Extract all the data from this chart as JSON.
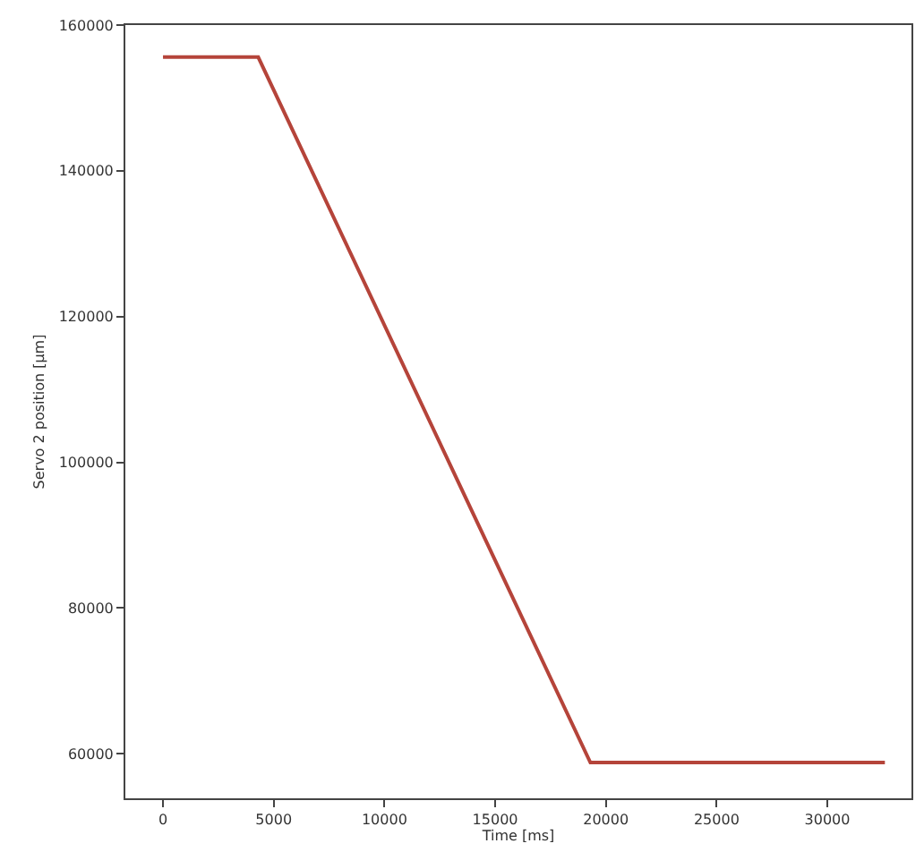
{
  "chart_data": {
    "type": "line",
    "xlabel": "Time [ms]",
    "ylabel": "Servo 2 position [μm]",
    "x": [
      0,
      4300,
      19300,
      32600
    ],
    "series": [
      {
        "color": "#b5443a",
        "values": [
          155600,
          155600,
          58800,
          58800
        ]
      }
    ],
    "xlim": [
      -1700,
      33800
    ],
    "ylim": [
      53900,
      160000
    ],
    "xticks": [
      0,
      5000,
      10000,
      15000,
      20000,
      25000,
      30000
    ],
    "yticks": [
      60000,
      80000,
      100000,
      120000,
      140000,
      160000
    ],
    "marker": "none",
    "line_style": "solid"
  }
}
